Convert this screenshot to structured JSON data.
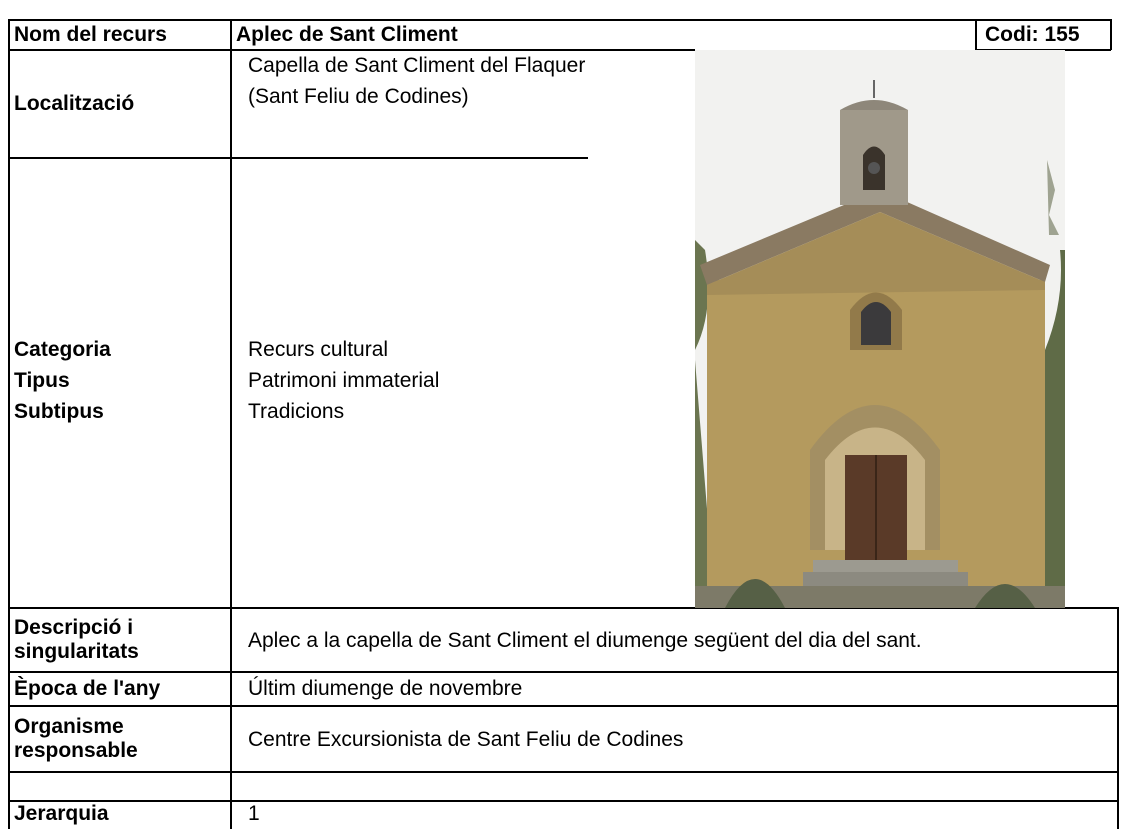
{
  "header": {
    "label": "Nom del recurs",
    "name": "Aplec de Sant Climent",
    "code": "Codi: 155"
  },
  "location": {
    "label": "Localització",
    "value": "Capella de Sant Climent del Flaquer (Sant Feliu de Codines)"
  },
  "classification": {
    "labels": [
      "Categoria",
      "Tipus",
      "Subtipus"
    ],
    "values": [
      "Recurs cultural",
      "Patrimoni immaterial",
      "Tradicions"
    ]
  },
  "rows": [
    {
      "label": "Descripció i singularitats",
      "value": "Aplec a la capella de Sant Climent el diumenge següent del dia del sant."
    },
    {
      "label": "Època de l'any",
      "value": "Últim diumenge de novembre"
    },
    {
      "label": "Organisme responsable",
      "value": "Centre Excursionista de Sant Feliu de Codines"
    },
    {
      "label": "Jerarquia",
      "value": "1"
    }
  ]
}
